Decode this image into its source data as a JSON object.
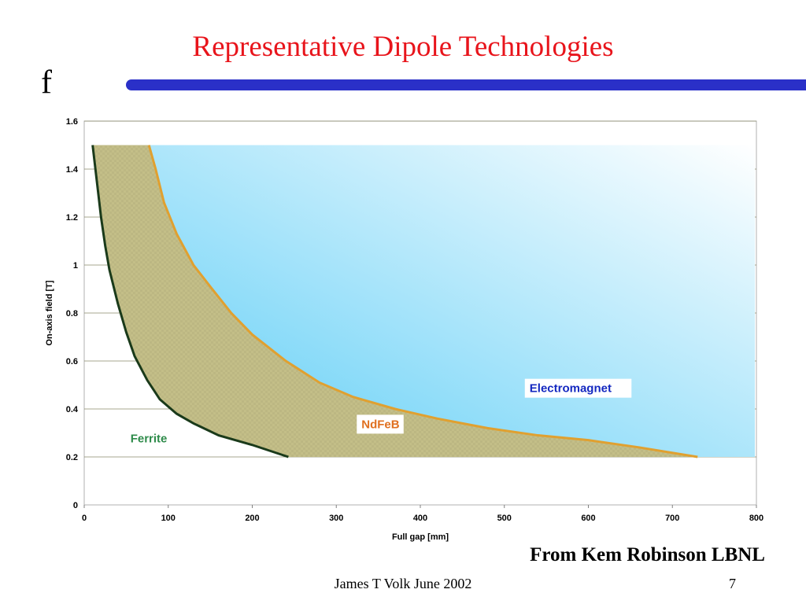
{
  "slide": {
    "title": "Representative Dipole Technologies",
    "bullet": "f",
    "credit": "From Kem Robinson LBNL",
    "footer": "James T Volk June 2002",
    "page_number": "7"
  },
  "colors": {
    "title": "#e8141b",
    "rule": "#2a30c8",
    "ferrite_region": "#c3be88",
    "electromagnet_gradient_start": "#5ccdf6",
    "electromagnet_gradient_end": "#ffffff",
    "ferrite_line": "#1a3a1a",
    "ndfeb_line": "#e0a030",
    "ferrite_label": "#2e8b4a",
    "ndfeb_label": "#e07020",
    "electromagnet_label": "#1428c0"
  },
  "chart_data": {
    "type": "area",
    "xlabel": "Full gap [mm]",
    "ylabel": "On-axis field [T]",
    "xlim": [
      0,
      800
    ],
    "ylim": [
      0,
      1.6
    ],
    "x_ticks": [
      "0",
      "100",
      "200",
      "300",
      "400",
      "500",
      "600",
      "700",
      "800"
    ],
    "y_ticks": [
      "0",
      "0.2",
      "0.4",
      "0.6",
      "0.8",
      "1",
      "1.2",
      "1.4",
      "1.6"
    ],
    "grid": "horizontal",
    "series": [
      {
        "name": "Ferrite",
        "x": [
          10,
          15,
          20,
          25,
          30,
          40,
          50,
          60,
          75,
          90,
          110,
          130,
          160,
          200,
          243
        ],
        "y": [
          1.5,
          1.35,
          1.2,
          1.08,
          0.98,
          0.84,
          0.72,
          0.62,
          0.52,
          0.44,
          0.38,
          0.34,
          0.29,
          0.25,
          0.2
        ]
      },
      {
        "name": "NdFeB",
        "x": [
          77,
          85,
          95,
          110,
          130,
          150,
          175,
          200,
          240,
          280,
          320,
          370,
          420,
          480,
          540,
          600,
          660,
          730
        ],
        "y": [
          1.5,
          1.4,
          1.26,
          1.13,
          1.0,
          0.91,
          0.8,
          0.71,
          0.6,
          0.51,
          0.45,
          0.4,
          0.36,
          0.32,
          0.29,
          0.27,
          0.24,
          0.2
        ]
      }
    ],
    "labels": [
      {
        "text": "Ferrite",
        "x": 55,
        "y": 0.26
      },
      {
        "text": "NdFeB",
        "x": 330,
        "y": 0.32
      },
      {
        "text": "Electromagnet",
        "x": 530,
        "y": 0.47
      }
    ]
  }
}
